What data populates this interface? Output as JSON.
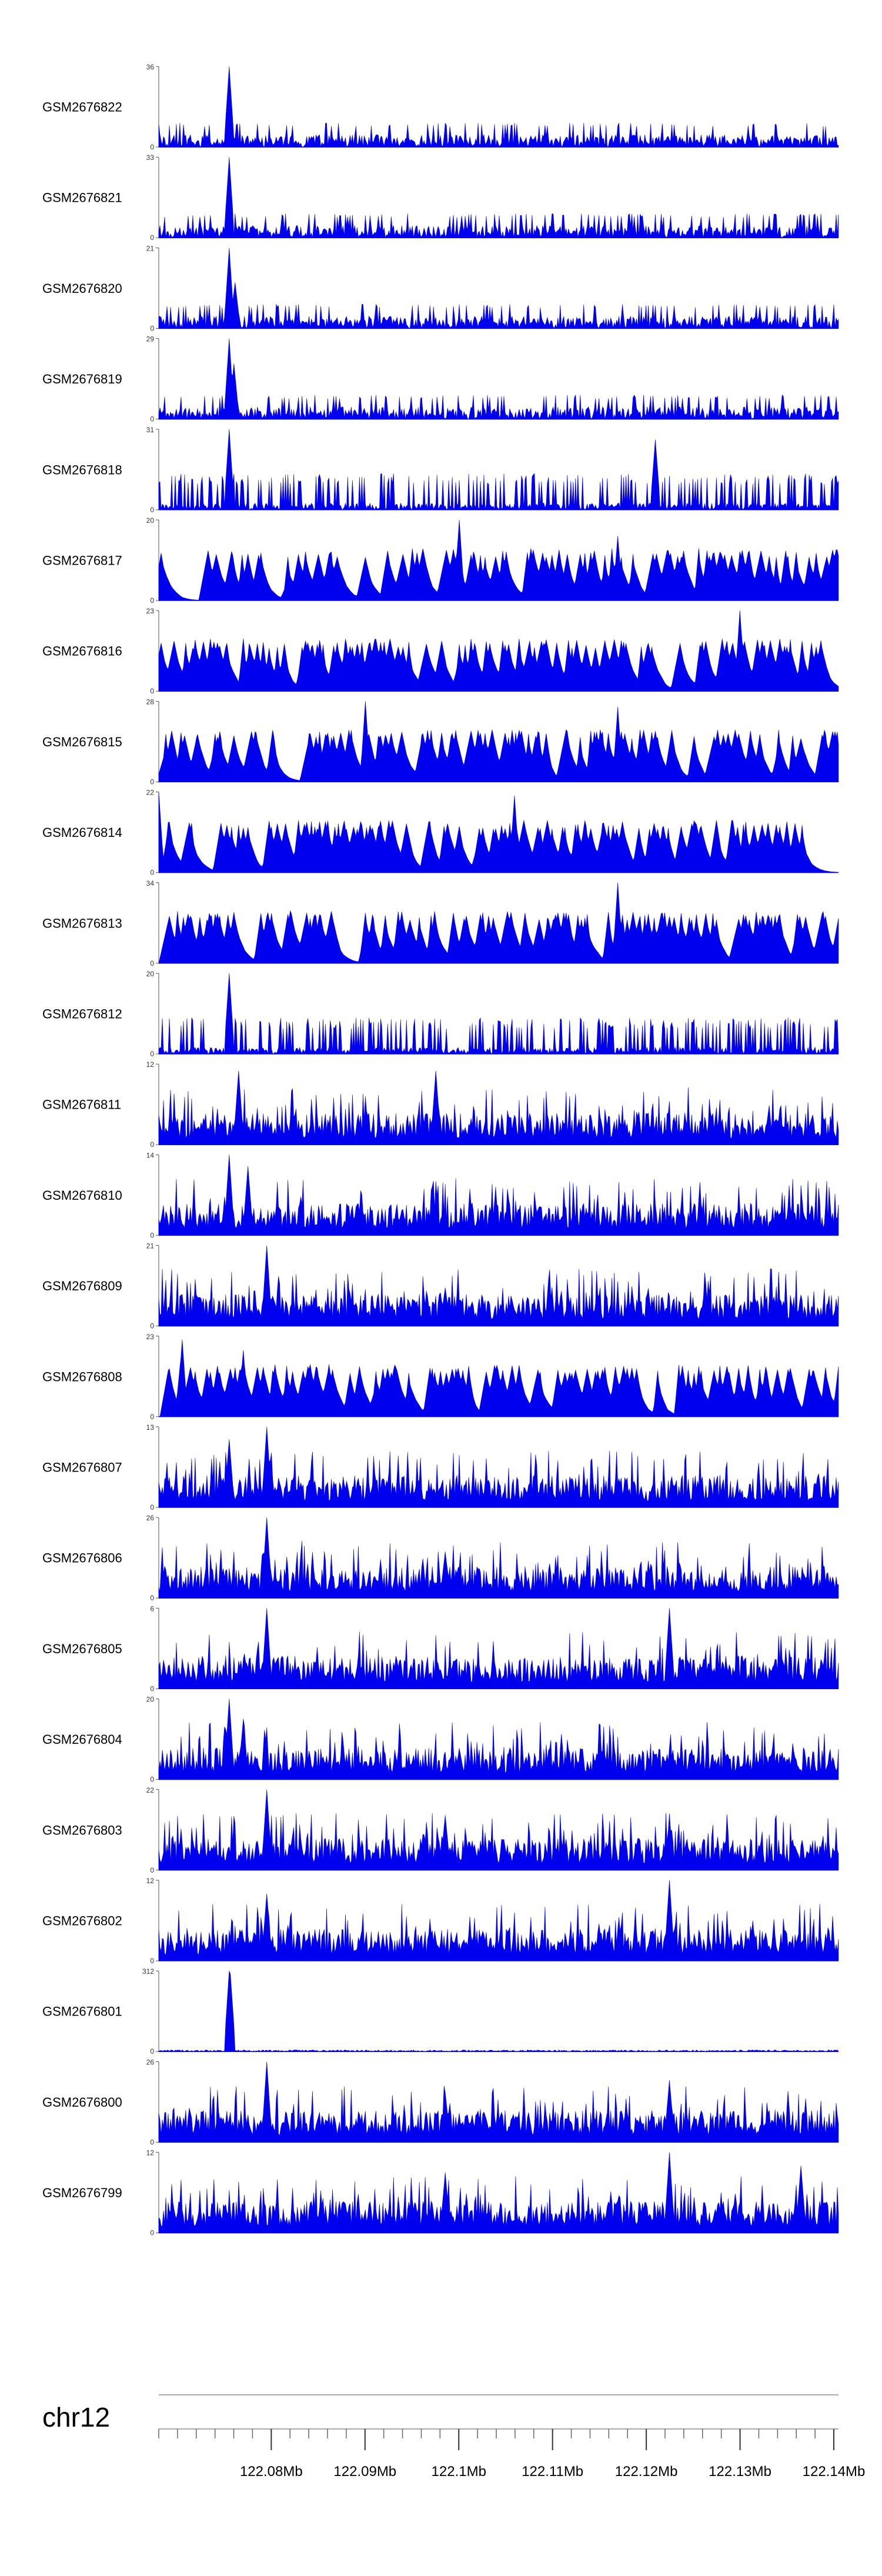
{
  "chart_data": {
    "type": "area",
    "title": "",
    "fill_color": "#0000ee",
    "chromosome": "chr12",
    "x_range_mb": [
      122.068,
      122.1405
    ],
    "x_ticks": [
      "122.08Mb",
      "122.09Mb",
      "122.1Mb",
      "122.11Mb",
      "122.12Mb",
      "122.13Mb",
      "122.14Mb"
    ],
    "x_tick_values_mb": [
      122.08,
      122.09,
      122.1,
      122.11,
      122.12,
      122.13,
      122.14
    ],
    "series": [
      {
        "name": "GSM2676822",
        "ymax": "36",
        "ymin": "0",
        "max": 36,
        "style": "dense",
        "seed": 11,
        "peaks": [
          [
            122.0755,
            36
          ]
        ]
      },
      {
        "name": "GSM2676821",
        "ymax": "33",
        "ymin": "0",
        "max": 33,
        "style": "dense",
        "seed": 12,
        "peaks": [
          [
            122.0755,
            33
          ]
        ]
      },
      {
        "name": "GSM2676820",
        "ymax": "21",
        "ymin": "0",
        "max": 21,
        "style": "dense",
        "seed": 13,
        "peaks": [
          [
            122.0755,
            21
          ],
          [
            122.0762,
            12
          ]
        ]
      },
      {
        "name": "GSM2676819",
        "ymax": "29",
        "ymin": "0",
        "max": 29,
        "style": "dense",
        "seed": 14,
        "peaks": [
          [
            122.0755,
            29
          ],
          [
            122.076,
            20
          ]
        ]
      },
      {
        "name": "GSM2676818",
        "ymax": "31",
        "ymin": "0",
        "max": 31,
        "style": "spiky",
        "seed": 15,
        "peaks": [
          [
            122.0755,
            31
          ],
          [
            122.121,
            27
          ]
        ]
      },
      {
        "name": "GSM2676817",
        "ymax": "20",
        "ymin": "0",
        "max": 20,
        "style": "sparse",
        "seed": 16,
        "peaks": [
          [
            122.1,
            20
          ],
          [
            122.117,
            16
          ]
        ]
      },
      {
        "name": "GSM2676816",
        "ymax": "23",
        "ymin": "0",
        "max": 23,
        "style": "sparse",
        "seed": 17,
        "peaks": [
          [
            122.13,
            23
          ],
          [
            122.077,
            15
          ]
        ]
      },
      {
        "name": "GSM2676815",
        "ymax": "28",
        "ymin": "0",
        "max": 28,
        "style": "sparse",
        "seed": 18,
        "peaks": [
          [
            122.09,
            28
          ],
          [
            122.117,
            26
          ]
        ]
      },
      {
        "name": "GSM2676814",
        "ymax": "22",
        "ymin": "0",
        "max": 22,
        "style": "sparse",
        "seed": 19,
        "peaks": [
          [
            122.068,
            22
          ],
          [
            122.106,
            21
          ]
        ]
      },
      {
        "name": "GSM2676813",
        "ymax": "34",
        "ymin": "0",
        "max": 34,
        "style": "sparse",
        "seed": 20,
        "peaks": [
          [
            122.117,
            34
          ]
        ]
      },
      {
        "name": "GSM2676812",
        "ymax": "20",
        "ymin": "0",
        "max": 20,
        "style": "spiky",
        "seed": 21,
        "peaks": [
          [
            122.0755,
            20
          ]
        ]
      },
      {
        "name": "GSM2676811",
        "ymax": "12",
        "ymin": "0",
        "max": 12,
        "style": "busy",
        "seed": 22,
        "peaks": [
          [
            122.0765,
            11
          ],
          [
            122.0975,
            11
          ]
        ]
      },
      {
        "name": "GSM2676810",
        "ymax": "14",
        "ymin": "0",
        "max": 14,
        "style": "busy",
        "seed": 23,
        "peaks": [
          [
            122.0755,
            14
          ],
          [
            122.0775,
            12
          ]
        ]
      },
      {
        "name": "GSM2676809",
        "ymax": "21",
        "ymin": "0",
        "max": 21,
        "style": "busy",
        "seed": 24,
        "peaks": [
          [
            122.0795,
            21
          ],
          [
            122.0985,
            10
          ]
        ]
      },
      {
        "name": "GSM2676808",
        "ymax": "23",
        "ymin": "0",
        "max": 23,
        "style": "sparse",
        "seed": 25,
        "peaks": [
          [
            122.0705,
            22
          ],
          [
            122.077,
            19
          ]
        ]
      },
      {
        "name": "GSM2676807",
        "ymax": "13",
        "ymin": "0",
        "max": 13,
        "style": "busy",
        "seed": 26,
        "peaks": [
          [
            122.0795,
            13
          ],
          [
            122.0755,
            11
          ]
        ]
      },
      {
        "name": "GSM2676806",
        "ymax": "26",
        "ymin": "0",
        "max": 26,
        "style": "busy",
        "seed": 27,
        "peaks": [
          [
            122.0795,
            26
          ],
          [
            122.0985,
            15
          ]
        ]
      },
      {
        "name": "GSM2676805",
        "ymax": "6",
        "ymin": "0",
        "max": 6,
        "style": "busy",
        "seed": 28,
        "peaks": [
          [
            122.0795,
            6
          ],
          [
            122.1225,
            6
          ]
        ]
      },
      {
        "name": "GSM2676804",
        "ymax": "20",
        "ymin": "0",
        "max": 20,
        "style": "busy",
        "seed": 29,
        "peaks": [
          [
            122.0755,
            20
          ],
          [
            122.077,
            15
          ]
        ]
      },
      {
        "name": "GSM2676803",
        "ymax": "22",
        "ymin": "0",
        "max": 22,
        "style": "busy",
        "seed": 30,
        "peaks": [
          [
            122.0795,
            22
          ],
          [
            122.0985,
            15
          ],
          [
            122.1225,
            14
          ]
        ]
      },
      {
        "name": "GSM2676802",
        "ymax": "12",
        "ymin": "0",
        "max": 12,
        "style": "busy",
        "seed": 31,
        "peaks": [
          [
            122.1225,
            12
          ],
          [
            122.0795,
            10
          ]
        ]
      },
      {
        "name": "GSM2676801",
        "ymax": "312",
        "ymin": "0",
        "max": 312,
        "style": "flat",
        "seed": 32,
        "peaks": [
          [
            122.0755,
            312
          ],
          [
            122.0757,
            300
          ]
        ]
      },
      {
        "name": "GSM2676800",
        "ymax": "26",
        "ymin": "0",
        "max": 26,
        "style": "busy",
        "seed": 33,
        "peaks": [
          [
            122.0795,
            26
          ],
          [
            122.1225,
            20
          ],
          [
            122.0985,
            16
          ]
        ]
      },
      {
        "name": "GSM2676799",
        "ymax": "12",
        "ymin": "0",
        "max": 12,
        "style": "busy",
        "seed": 34,
        "peaks": [
          [
            122.1225,
            12
          ],
          [
            122.1365,
            10
          ],
          [
            122.0985,
            9
          ]
        ]
      }
    ]
  }
}
